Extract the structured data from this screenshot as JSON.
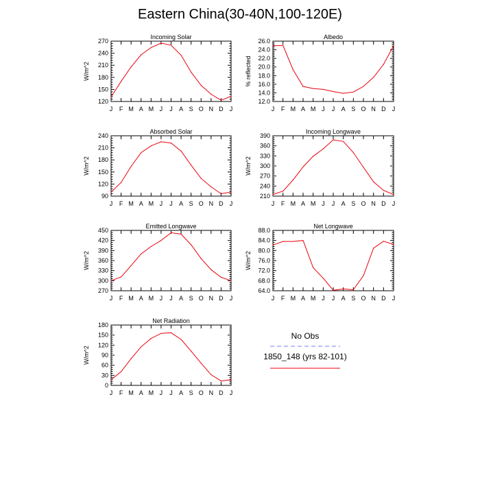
{
  "figure": {
    "title": "Eastern China(30-40N,100-120E)"
  },
  "colors": {
    "model": "#e8000b",
    "obs": "#7a7aff",
    "axis": "#000000"
  },
  "legend": {
    "obs_label": "No Obs",
    "model_label": "1850_148 (yrs 82-101)"
  },
  "chart_data": [
    {
      "type": "line",
      "title": "Incoming Solar",
      "ylabel": "W/m^2",
      "xlabel": "",
      "categories": [
        "J",
        "F",
        "M",
        "A",
        "M",
        "J",
        "J",
        "A",
        "S",
        "O",
        "N",
        "D",
        "J"
      ],
      "ylim": [
        120,
        270
      ],
      "yticks": [
        "120",
        "150",
        "180",
        "210",
        "240",
        "270"
      ],
      "series": [
        {
          "values": [
            131,
            170,
            206,
            236,
            254,
            265,
            260,
            235,
            193,
            160,
            138,
            123,
            133
          ]
        }
      ]
    },
    {
      "type": "line",
      "title": "Albedo",
      "ylabel": "% reflected",
      "xlabel": "",
      "categories": [
        "J",
        "F",
        "M",
        "A",
        "M",
        "J",
        "J",
        "A",
        "S",
        "O",
        "N",
        "D",
        "J"
      ],
      "ylim": [
        12,
        26
      ],
      "yticks": [
        "12.0",
        "14.0",
        "16.0",
        "18.0",
        "20.0",
        "22.0",
        "24.0",
        "26.0"
      ],
      "series": [
        {
          "values": [
            24.9,
            25.0,
            19.4,
            15.5,
            15.0,
            14.8,
            14.3,
            13.9,
            14.2,
            15.5,
            17.6,
            20.6,
            24.9
          ]
        }
      ]
    },
    {
      "type": "line",
      "title": "Absorbed Solar",
      "ylabel": "W/m^2",
      "xlabel": "",
      "categories": [
        "J",
        "F",
        "M",
        "A",
        "M",
        "J",
        "J",
        "A",
        "S",
        "O",
        "N",
        "D",
        "J"
      ],
      "ylim": [
        90,
        240
      ],
      "yticks": [
        "90",
        "120",
        "150",
        "180",
        "210",
        "240"
      ],
      "series": [
        {
          "values": [
            100,
            124,
            164,
            198,
            215,
            225,
            222,
            202,
            167,
            134,
            113,
            96,
            100
          ]
        }
      ]
    },
    {
      "type": "line",
      "title": "Incoming Longwave",
      "ylabel": "W/m^2",
      "xlabel": "",
      "categories": [
        "J",
        "F",
        "M",
        "A",
        "M",
        "J",
        "J",
        "A",
        "S",
        "O",
        "N",
        "D",
        "J"
      ],
      "ylim": [
        210,
        390
      ],
      "yticks": [
        "210",
        "240",
        "270",
        "300",
        "330",
        "360",
        "390"
      ],
      "series": [
        {
          "values": [
            215,
            225,
            258,
            297,
            329,
            351,
            378,
            373,
            340,
            296,
            253,
            227,
            215
          ]
        }
      ]
    },
    {
      "type": "line",
      "title": "Emitted Longwave",
      "ylabel": "W/m^2",
      "xlabel": "",
      "categories": [
        "J",
        "F",
        "M",
        "A",
        "M",
        "J",
        "J",
        "A",
        "S",
        "O",
        "N",
        "D",
        "J"
      ],
      "ylim": [
        270,
        450
      ],
      "yticks": [
        "270",
        "300",
        "330",
        "360",
        "390",
        "420",
        "450"
      ],
      "series": [
        {
          "values": [
            300,
            311,
            345,
            380,
            402,
            420,
            443,
            439,
            407,
            366,
            333,
            310,
            300
          ]
        }
      ]
    },
    {
      "type": "line",
      "title": "Net Longwave",
      "ylabel": "W/m^2",
      "xlabel": "",
      "categories": [
        "J",
        "F",
        "M",
        "A",
        "M",
        "J",
        "J",
        "A",
        "S",
        "O",
        "N",
        "D",
        "J"
      ],
      "ylim": [
        64,
        88
      ],
      "yticks": [
        "64.0",
        "68.0",
        "72.0",
        "76.0",
        "80.0",
        "84.0",
        "88.0"
      ],
      "series": [
        {
          "values": [
            82.2,
            83.6,
            83.6,
            84.0,
            73.2,
            69.0,
            64.2,
            64.7,
            64.4,
            70.0,
            80.9,
            83.7,
            82.4
          ]
        }
      ]
    },
    {
      "type": "line",
      "title": "Net Radiation",
      "ylabel": "W/m^2",
      "xlabel": "",
      "categories": [
        "J",
        "F",
        "M",
        "A",
        "M",
        "J",
        "J",
        "A",
        "S",
        "O",
        "N",
        "D",
        "J"
      ],
      "ylim": [
        0,
        180
      ],
      "yticks": [
        "0",
        "30",
        "60",
        "90",
        "120",
        "150",
        "180"
      ],
      "series": [
        {
          "values": [
            17,
            41,
            80,
            115,
            140,
            155,
            157,
            137,
            102,
            66,
            32,
            13,
            17
          ]
        }
      ]
    }
  ]
}
